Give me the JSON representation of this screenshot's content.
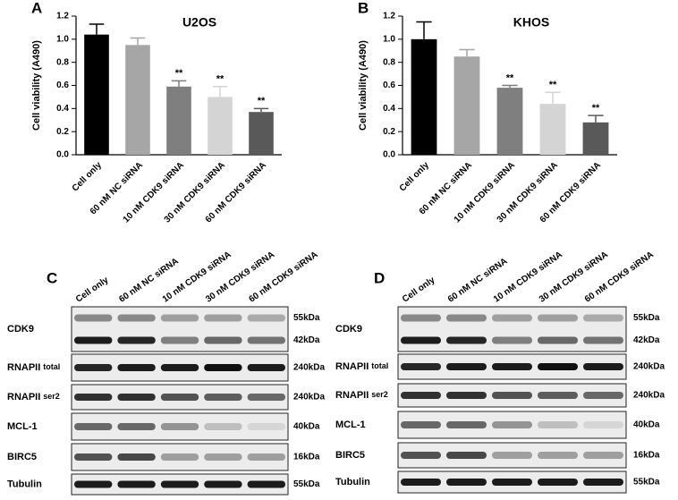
{
  "chart_data": [
    {
      "type": "bar",
      "panel": "A",
      "title": "U2OS",
      "y_label": "Cell viability (A490)",
      "categories": [
        "Cell only",
        "60 nM NC siRNA",
        "10 nM CDK9 siRNA",
        "30 nM CDK9 siRNA",
        "60 nM CDK9 siRNA"
      ],
      "values": [
        1.04,
        0.95,
        0.59,
        0.5,
        0.37
      ],
      "errors": [
        0.09,
        0.06,
        0.05,
        0.09,
        0.03
      ],
      "colors": [
        "#000000",
        "#a6a6a6",
        "#7f7f7f",
        "#d4d4d4",
        "#595959"
      ],
      "annotations": [
        {
          "category": "10 nM CDK9 siRNA",
          "text": "**"
        },
        {
          "category": "30 nM CDK9 siRNA",
          "text": "**"
        },
        {
          "category": "60 nM CDK9 siRNA",
          "text": "**"
        }
      ],
      "ylim": [
        0,
        1.2
      ],
      "yticks": [
        {
          "value": 0,
          "label": "0.0"
        },
        0.2,
        0.4,
        0.6,
        0.8,
        {
          "value": 1,
          "label": "1.0"
        },
        1.2
      ]
    },
    {
      "type": "bar",
      "panel": "B",
      "title": "KHOS",
      "y_label": "Cell viability (A490)",
      "categories": [
        "Cell only",
        "60 nM NC siRNA",
        "10 nM CDK9 siRNA",
        "30 nM CDK9 siRNA",
        "60 nM CDK9 siRNA"
      ],
      "values": [
        1.0,
        0.85,
        0.58,
        0.44,
        0.28
      ],
      "errors": [
        0.15,
        0.06,
        0.02,
        0.1,
        0.06
      ],
      "colors": [
        "#000000",
        "#a6a6a6",
        "#7f7f7f",
        "#d4d4d4",
        "#595959"
      ],
      "annotations": [
        {
          "category": "10 nM CDK9 siRNA",
          "text": "**"
        },
        {
          "category": "30 nM CDK9 siRNA",
          "text": "**"
        },
        {
          "category": "60 nM CDK9 siRNA",
          "text": "**"
        }
      ],
      "ylim": [
        0,
        1.2
      ],
      "yticks": [
        {
          "value": 0,
          "label": "0.0"
        },
        0.2,
        0.4,
        0.6,
        0.8,
        {
          "value": 1,
          "label": "1.0"
        },
        1.2
      ]
    }
  ],
  "blots": [
    {
      "panel": "C",
      "lanes": [
        "Cell only",
        "60 nM NC siRNA",
        "10 nM CDK9 siRNA",
        "30 nM CDK9 siRNA",
        "60 nM CDK9 siRNA"
      ],
      "rows": [
        {
          "label": "CDK9",
          "sizes": [
            "55kDa",
            "42kDa"
          ]
        },
        {
          "label": "RNAPII",
          "sub": "total",
          "sizes": [
            "240kDa"
          ]
        },
        {
          "label": "RNAPII",
          "sub": "ser2",
          "sizes": [
            "240kDa"
          ]
        },
        {
          "label": "MCL-1",
          "sizes": [
            "40kDa"
          ]
        },
        {
          "label": "BIRC5",
          "sizes": [
            "16kDa"
          ]
        },
        {
          "label": "Tubulin",
          "sizes": [
            "55kDa"
          ]
        }
      ]
    },
    {
      "panel": "D",
      "lanes": [
        "Cell only",
        "60 nM NC siRNA",
        "10 nM CDK9 siRNA",
        "30 nM CDK9 siRNA",
        "60 nM CDK9 siRNA"
      ],
      "rows": [
        {
          "label": "CDK9",
          "sizes": [
            "55kDa",
            "42kDa"
          ]
        },
        {
          "label": "RNAPII",
          "sub": "total",
          "sizes": [
            "240kDa"
          ]
        },
        {
          "label": "RNAPII",
          "sub": "ser2",
          "sizes": [
            "240kDa"
          ]
        },
        {
          "label": "MCL-1",
          "sizes": [
            "40kDa"
          ]
        },
        {
          "label": "BIRC5",
          "sizes": [
            "16kDa"
          ]
        },
        {
          "label": "Tubulin",
          "sizes": [
            "55kDa"
          ]
        }
      ]
    }
  ]
}
